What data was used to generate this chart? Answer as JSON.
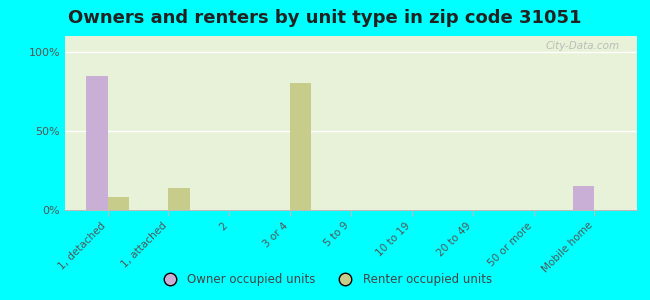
{
  "title": "Owners and renters by unit type in zip code 31051",
  "categories": [
    "1, detached",
    "1, attached",
    "2",
    "3 or 4",
    "5 to 9",
    "10 to 19",
    "20 to 49",
    "50 or more",
    "Mobile home"
  ],
  "owner_values": [
    85,
    0,
    0,
    0,
    0,
    0,
    0,
    0,
    15
  ],
  "renter_values": [
    8,
    14,
    0,
    80,
    0,
    0,
    0,
    0,
    0
  ],
  "owner_color": "#c9aed6",
  "renter_color": "#c8cc8a",
  "background_color": "#00ffff",
  "plot_bg_color": "#e8f2d8",
  "yticks": [
    0,
    50,
    100
  ],
  "ytick_labels": [
    "0%",
    "50%",
    "100%"
  ],
  "ylim": [
    0,
    110
  ],
  "bar_width": 0.35,
  "title_fontsize": 13,
  "legend_label_owner": "Owner occupied units",
  "legend_label_renter": "Renter occupied units",
  "watermark": "City-Data.com"
}
